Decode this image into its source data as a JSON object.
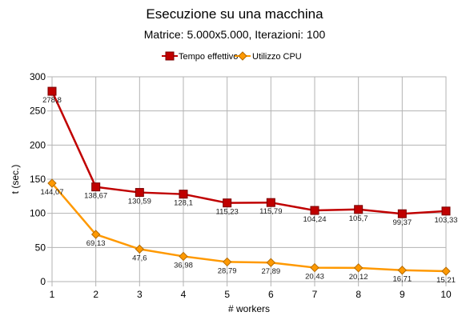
{
  "chart_data": {
    "type": "line",
    "title": "Esecuzione su una macchina",
    "subtitle": "Matrice: 5.000x5.000, Iterazioni: 100",
    "xlabel": "# workers",
    "ylabel": "t (sec.)",
    "x": [
      1,
      2,
      3,
      4,
      5,
      6,
      7,
      8,
      9,
      10
    ],
    "xlim": [
      1,
      10
    ],
    "ylim": [
      0,
      300
    ],
    "yticks": [
      0,
      50,
      100,
      150,
      200,
      250,
      300
    ],
    "grid": true,
    "legend_position": "top-center",
    "series": [
      {
        "name": "Tempo effettivo",
        "color": "#c00000",
        "marker": "square",
        "values": [
          278.8,
          138.67,
          130.59,
          128.1,
          115.23,
          115.79,
          104.24,
          105.7,
          99.37,
          103.33
        ],
        "labels": [
          "278,8",
          "138,67",
          "130,59",
          "128,1",
          "115,23",
          "115,79",
          "104,24",
          "105,7",
          "99,37",
          "103,33"
        ]
      },
      {
        "name": "Utilizzo CPU",
        "color": "#ff9900",
        "marker": "diamond",
        "values": [
          144.07,
          69.13,
          47.6,
          36.98,
          28.79,
          27.89,
          20.43,
          20.12,
          16.71,
          15.21
        ],
        "labels": [
          "144,07",
          "69,13",
          "47,6",
          "36,98",
          "28,79",
          "27,89",
          "20,43",
          "20,12",
          "16,71",
          "15,21"
        ]
      }
    ]
  }
}
